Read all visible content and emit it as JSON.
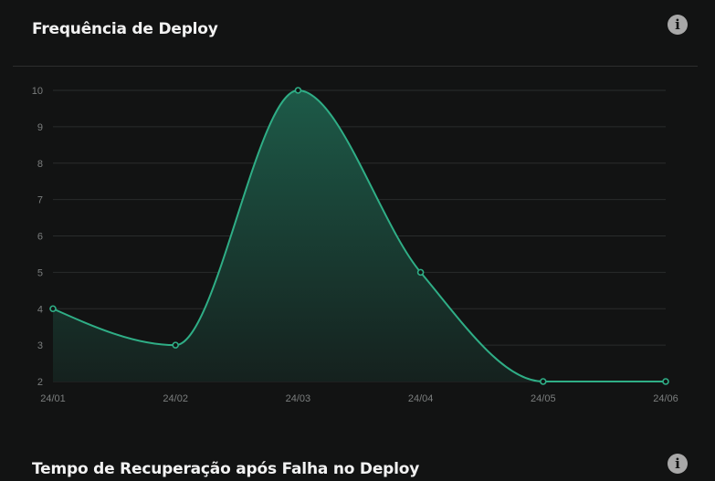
{
  "deploy_frequency": {
    "title": "Frequência de Deploy",
    "info_icon": "info-icon"
  },
  "recovery_time": {
    "title": "Tempo de Recuperação após Falha no Deploy",
    "info_icon": "info-icon"
  },
  "colors": {
    "line": "#2fae86",
    "area_top": "#1d5a48",
    "grid": "#2a2c2c",
    "background": "#121313"
  },
  "chart_data": {
    "type": "area",
    "x": [
      "24/01",
      "24/02",
      "24/03",
      "24/04",
      "24/05",
      "24/06"
    ],
    "values": [
      4,
      3,
      10,
      5,
      2,
      2
    ],
    "yticks": [
      2,
      3,
      4,
      5,
      6,
      7,
      8,
      9,
      10
    ],
    "ylim": [
      2,
      10
    ],
    "grid": true,
    "legend": "none"
  }
}
